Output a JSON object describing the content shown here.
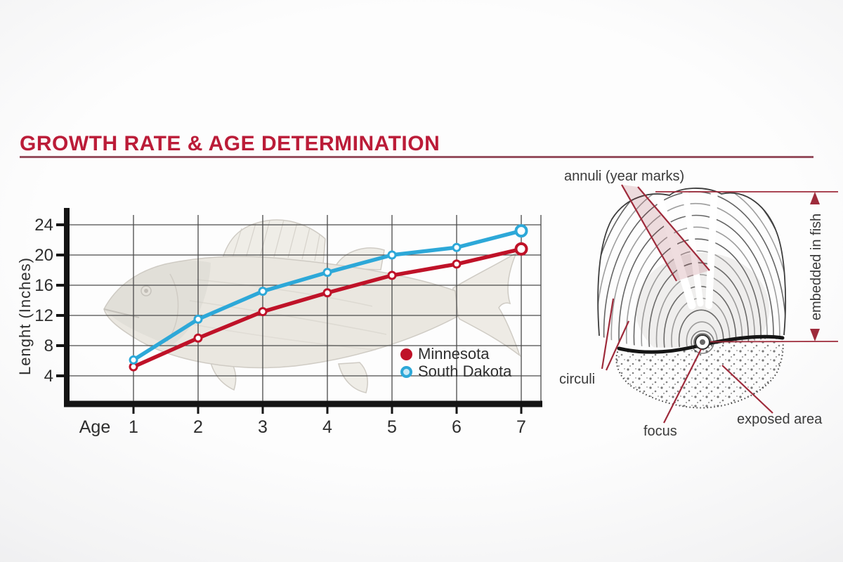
{
  "page": {
    "title": "GROWTH RATE & AGE DETERMINATION"
  },
  "chart_data": {
    "type": "line",
    "title": "",
    "xlabel": "Age",
    "ylabel": "Lenght (Inches)",
    "x": [
      1,
      2,
      3,
      4,
      5,
      6,
      7
    ],
    "xticks": [
      "1",
      "2",
      "3",
      "4",
      "5",
      "6",
      "7"
    ],
    "yticks": [
      4,
      8,
      12,
      16,
      20,
      24
    ],
    "ylim": [
      0,
      26
    ],
    "grid": true,
    "legend_position": "bottom-right",
    "series": [
      {
        "name": "Minnesota",
        "color": "#bf1228",
        "values": [
          5.2,
          9.0,
          12.5,
          15.0,
          17.3,
          18.8,
          20.8
        ]
      },
      {
        "name": "South Dakota",
        "color": "#2da8d8",
        "values": [
          6.1,
          11.5,
          15.2,
          17.7,
          20.0,
          21.0,
          23.2
        ]
      }
    ]
  },
  "diagram": {
    "annuli_label": "annuli (year marks)",
    "circuli_label": "circuli",
    "focus_label": "focus",
    "exposed_label": "exposed area",
    "embedded_label": "embedded in fish",
    "accent_color": "#9e2b3b"
  },
  "theme": {
    "title_color": "#bb1c38",
    "underline_color": "#96505f",
    "grid_color": "#4b4b4b",
    "axis_color": "#141414",
    "text_color": "#2e2e2e"
  }
}
